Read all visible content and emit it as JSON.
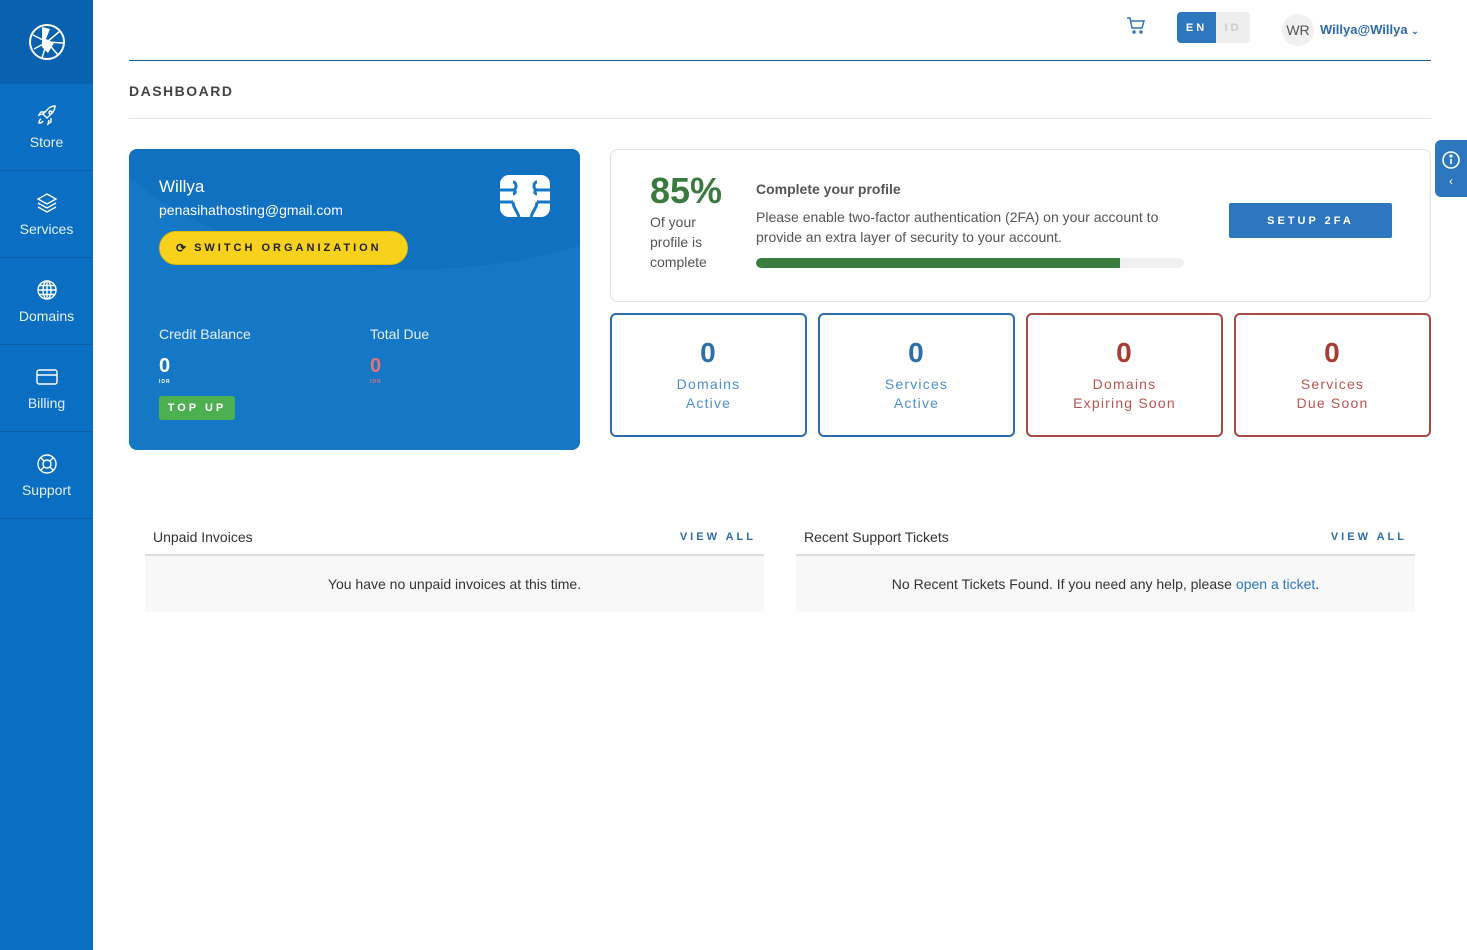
{
  "sidebar": {
    "items": [
      {
        "label": "Store",
        "icon": "rocket-icon"
      },
      {
        "label": "Services",
        "icon": "layers-icon"
      },
      {
        "label": "Domains",
        "icon": "globe-icon"
      },
      {
        "label": "Billing",
        "icon": "credit-card-icon"
      },
      {
        "label": "Support",
        "icon": "lifebuoy-icon"
      }
    ]
  },
  "header": {
    "lang_en": "EN",
    "lang_id": "ID",
    "avatar": "WR",
    "user": "Willya@Willya"
  },
  "page_title": "DASHBOARD",
  "card": {
    "name": "Willya",
    "email": "penasihathosting@gmail.com",
    "switch_label": "SWITCH ORGANIZATION",
    "credit_label": "Credit Balance",
    "credit_value": "0",
    "credit_currency": "IDR",
    "due_label": "Total Due",
    "due_value": "0",
    "due_currency": "IDR",
    "topup_label": "TOP UP"
  },
  "profile": {
    "percent": "85%",
    "percent_value": 85,
    "percent_caption": "Of your profile is complete",
    "title": "Complete your profile",
    "text": "Please enable two-factor authentication (2FA) on your account to provide an extra layer of security to your account.",
    "button": "SETUP 2FA"
  },
  "stats": [
    {
      "value": "0",
      "label1": "Domains",
      "label2": "Active"
    },
    {
      "value": "0",
      "label1": "Services",
      "label2": "Active"
    },
    {
      "value": "0",
      "label1": "Domains",
      "label2": "Expiring Soon"
    },
    {
      "value": "0",
      "label1": "Services",
      "label2": "Due Soon"
    }
  ],
  "invoices": {
    "title": "Unpaid Invoices",
    "view_all": "VIEW ALL",
    "message": "You have no unpaid invoices at this time."
  },
  "tickets": {
    "title": "Recent Support Tickets",
    "view_all": "VIEW ALL",
    "message": "No Recent Tickets Found. If you need any help, please",
    "link": "open a ticket",
    "suffix": "."
  },
  "colors": {
    "sidebar": "#0a6fc2",
    "accent": "#2c77bd",
    "green": "#3a7d3e",
    "yellow": "#f7d11b",
    "red": "#a83a35"
  }
}
